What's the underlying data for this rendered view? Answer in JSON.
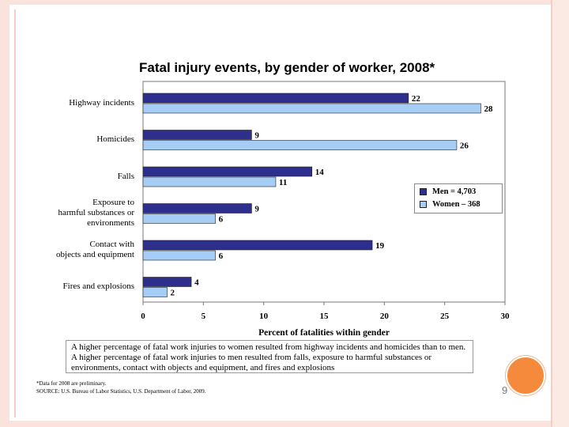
{
  "chart_data": {
    "type": "bar",
    "orientation": "horizontal",
    "title": "Fatal injury events, by gender of worker, 2008*",
    "categories": [
      "Highway incidents",
      "Homicides",
      "Falls",
      "Exposure to harmful substances or environments",
      "Contact with objects and equipment",
      "Fires and explosions"
    ],
    "category_lines": [
      [
        "Highway incidents"
      ],
      [
        "Homicides"
      ],
      [
        "Falls"
      ],
      [
        "Exposure to",
        "harmful substances or",
        "environments"
      ],
      [
        "Contact with",
        "objects and equipment"
      ],
      [
        "Fires and explosions"
      ]
    ],
    "series": [
      {
        "name": "Men  =  4,703",
        "color": "#2e2e8c",
        "values": [
          22,
          9,
          14,
          9,
          19,
          4
        ]
      },
      {
        "name": "Women – 368",
        "color": "#a6cdf6",
        "values": [
          28,
          26,
          11,
          6,
          6,
          2
        ]
      }
    ],
    "xlabel": "Percent of fatalities within gender",
    "xlim": [
      0,
      30
    ],
    "xticks": [
      "0",
      "5",
      "10",
      "15",
      "20",
      "25",
      "30"
    ],
    "legend_position": "right-middle",
    "grid": false
  },
  "note": "A higher percentage of fatal work injuries to women resulted from highway incidents and homicides than to men.  A higher percentage of fatal work injuries to men resulted from falls, exposure to harmful substances or environments, contact with objects and equipment, and fires and explosions",
  "footnotes": {
    "preliminary": "*Data for 2008 are preliminary.",
    "source": "SOURCE:  U.S. Bureau of Labor Statistics, U.S. Department of Labor, 2009."
  },
  "page_number": "9",
  "colors": {
    "men": "#2e2e8c",
    "women": "#a6cdf6",
    "accent": "#f58a3c"
  }
}
